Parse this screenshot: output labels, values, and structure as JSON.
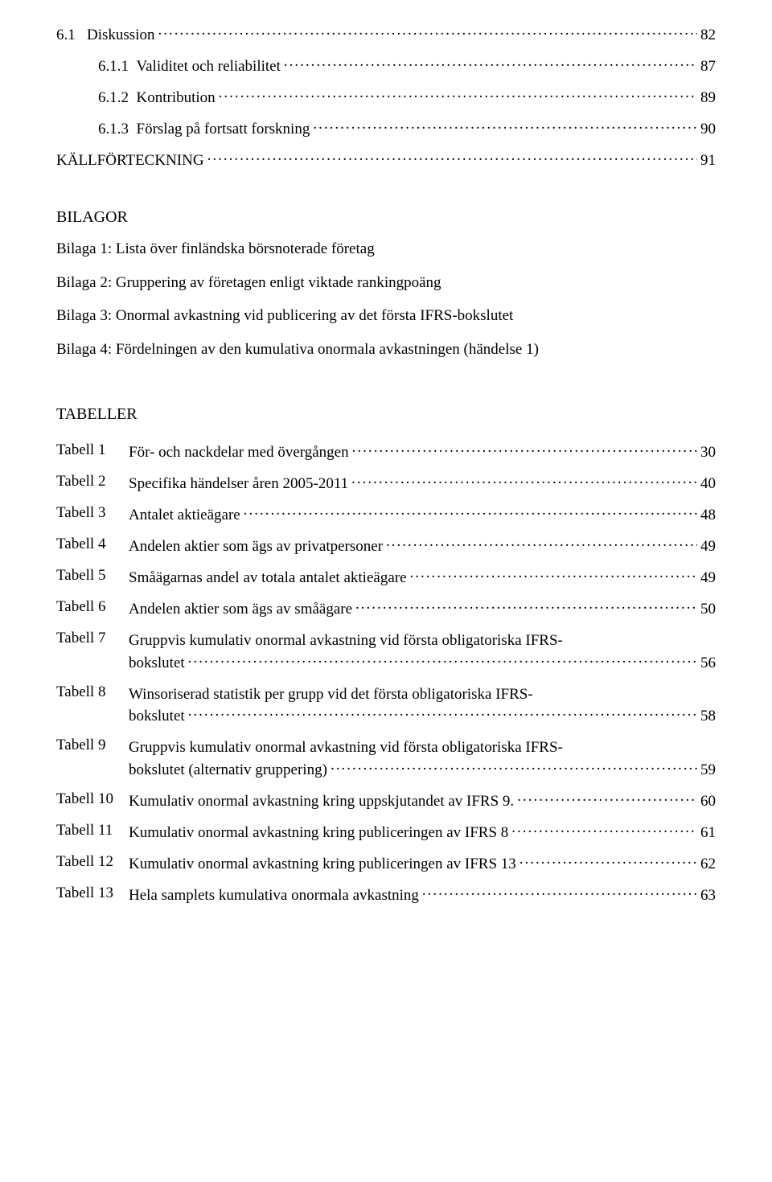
{
  "toc": [
    {
      "num": "6.1",
      "title": "Diskussion",
      "page": "82",
      "indent": 0
    },
    {
      "num": "6.1.1",
      "title": "Validitet och reliabilitet",
      "page": "87",
      "indent": 1
    },
    {
      "num": "6.1.2",
      "title": "Kontribution",
      "page": "89",
      "indent": 1
    },
    {
      "num": "6.1.3",
      "title": "Förslag på fortsatt forskning",
      "page": "90",
      "indent": 1
    },
    {
      "num": "",
      "title": "KÄLLFÖRTECKNING",
      "page": "91",
      "indent": 0
    }
  ],
  "bilagor": {
    "title": "BILAGOR",
    "items": [
      "Bilaga 1: Lista över finländska börsnoterade företag",
      "Bilaga 2: Gruppering av företagen enligt viktade rankingpoäng",
      "Bilaga 3: Onormal avkastning vid publicering av det första IFRS-bokslutet",
      "Bilaga 4: Fördelningen av den kumulativa onormala avkastningen (händelse 1)"
    ]
  },
  "tabeller": {
    "title": "TABELLER",
    "items": [
      {
        "id": "Tabell 1",
        "text": "För- och nackdelar med övergången",
        "page": "30"
      },
      {
        "id": "Tabell 2",
        "text": "Specifika händelser åren 2005-2011",
        "page": "40"
      },
      {
        "id": "Tabell 3",
        "text": "Antalet aktieägare",
        "page": "48"
      },
      {
        "id": "Tabell 4",
        "text": "Andelen aktier som ägs av privatpersoner",
        "page": "49"
      },
      {
        "id": "Tabell 5",
        "text": "Småägarnas andel av totala antalet aktieägare",
        "page": "49"
      },
      {
        "id": "Tabell 6",
        "text": "Andelen aktier som ägs av småägare",
        "page": "50"
      },
      {
        "id": "Tabell 7",
        "line1": "Gruppvis kumulativ onormal avkastning vid första obligatoriska IFRS-",
        "line2": "bokslutet",
        "page": "56",
        "multiline": true
      },
      {
        "id": "Tabell 8",
        "line1": "Winsoriserad statistik per grupp vid det första obligatoriska IFRS-",
        "line2": "bokslutet",
        "page": "58",
        "multiline": true
      },
      {
        "id": "Tabell 9",
        "line1": "Gruppvis kumulativ onormal avkastning vid första obligatoriska IFRS-",
        "line2": "bokslutet (alternativ gruppering)",
        "page": "59",
        "multiline": true
      },
      {
        "id": "Tabell 10",
        "text": "Kumulativ onormal avkastning kring uppskjutandet av IFRS 9.",
        "page": "60"
      },
      {
        "id": "Tabell 11",
        "text": "Kumulativ onormal avkastning kring publiceringen av IFRS 8",
        "page": "61"
      },
      {
        "id": "Tabell 12",
        "text": "Kumulativ onormal avkastning kring publiceringen av IFRS 13",
        "page": "62"
      },
      {
        "id": "Tabell 13",
        "text": "Hela samplets kumulativa onormala avkastning",
        "page": "63"
      }
    ]
  }
}
